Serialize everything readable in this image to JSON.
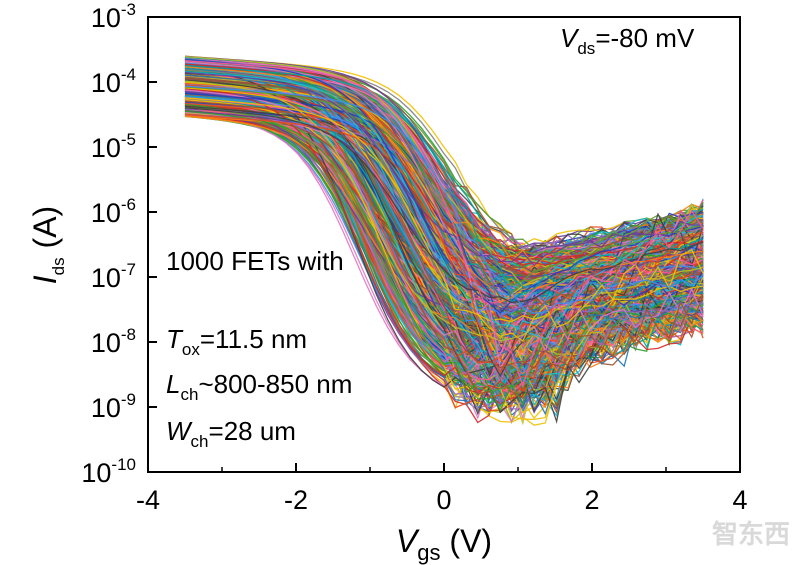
{
  "chart_data": {
    "type": "line",
    "title": "",
    "scale_y": "log",
    "xlim": [
      -4,
      4
    ],
    "ylim_exp": [
      -10,
      -3
    ],
    "x_ticks": [
      -4,
      -2,
      0,
      2,
      4
    ],
    "x_tick_labels": [
      "-4",
      "-2",
      "0",
      "2",
      "4"
    ],
    "y_tick_exponents": [
      -3,
      -4,
      -5,
      -6,
      -7,
      -8,
      -9,
      -10
    ],
    "y_tick_base": "10",
    "y_tick_sups": [
      "-3",
      "-4",
      "-5",
      "-6",
      "-7",
      "-8",
      "-9",
      "-10"
    ],
    "xlabel_main": "V",
    "xlabel_sub": "gs",
    "xlabel_unit": " (V)",
    "ylabel_main": "I",
    "ylabel_sub": "ds",
    "ylabel_unit": " (A)",
    "annotation_vds_main": "V",
    "annotation_vds_sub": "ds",
    "annotation_vds_value": "=-80 mV",
    "annotation_count": "1000 FETs with",
    "annotation_tox_main": "T",
    "annotation_tox_sub": "ox",
    "annotation_tox_value": "=11.5 nm",
    "annotation_lch_main": "L",
    "annotation_lch_sub": "ch",
    "annotation_lch_value": "~800-850 nm",
    "annotation_wch_main": "W",
    "annotation_wch_sub": "ch",
    "annotation_wch_value": "=28 um",
    "curve_count": 1000,
    "curve_x_range": [
      -3.5,
      3.5
    ],
    "curve_on_current_range": [
      3e-05,
      0.00025
    ],
    "curve_min_current_range": [
      8e-10,
      2e-07
    ],
    "curve_min_vgs_range": [
      0.6,
      1.6
    ],
    "curve_end_current_range": [
      2e-08,
      1e-06
    ],
    "series_colors": [
      "#1f77b4",
      "#ff7f0e",
      "#2ca02c",
      "#d62728",
      "#9467bd",
      "#8c564b",
      "#e377c2",
      "#7f7f7f",
      "#bcbd22",
      "#17becf",
      "#1f3fbf",
      "#e8481c",
      "#5a9e2f",
      "#a0522d",
      "#6a3d9a",
      "#00a0a0",
      "#f0c000",
      "#404040",
      "#ff5599",
      "#3b8ef0"
    ]
  },
  "watermark": "智东西",
  "caption": "…"
}
